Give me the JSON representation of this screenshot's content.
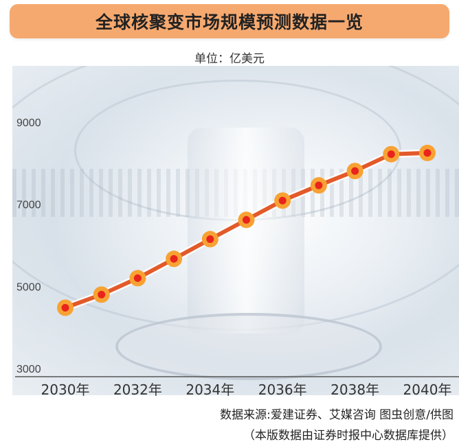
{
  "title": "全球核聚变市场规模预测数据一览",
  "unit": "单位：亿美元",
  "source": "数据来源:爱建证券、艾媒咨询  图虫创意/供图",
  "provider": "（本版数据由证券时报中心数据库提供）",
  "colors": {
    "title_bg": "#f6a96f",
    "line": "#e35a2a",
    "marker_outer": "#f7a233",
    "marker_inner": "#e8241c"
  },
  "chart_data": {
    "type": "line",
    "title": "全球核聚变市场规模预测数据一览",
    "ylabel": "单位：亿美元",
    "xlabel": "",
    "x": [
      "2030年",
      "2031年",
      "2032年",
      "2033年",
      "2034年",
      "2035年",
      "2036年",
      "2037年",
      "2038年",
      "2039年",
      "2040年"
    ],
    "x_ticks": [
      "2030年",
      "2032年",
      "2034年",
      "2036年",
      "2038年",
      "2040年"
    ],
    "y_ticks": [
      3000,
      5000,
      7000,
      9000
    ],
    "ylim": [
      3000,
      9000
    ],
    "values": [
      4680,
      5000,
      5400,
      5870,
      6350,
      6820,
      7290,
      7660,
      8010,
      8420,
      8450
    ],
    "grid": false,
    "legend": "none"
  }
}
